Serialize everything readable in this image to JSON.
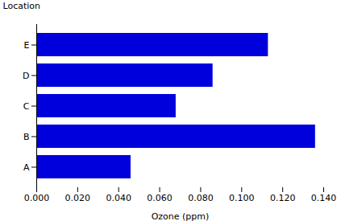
{
  "chart_data": {
    "type": "bar",
    "orientation": "horizontal",
    "categories": [
      "A",
      "B",
      "C",
      "D",
      "E"
    ],
    "values": [
      0.046,
      0.136,
      0.068,
      0.086,
      0.113
    ],
    "color": "#0000dd",
    "xlabel": "Ozone (ppm)",
    "ylabel": "Location",
    "xlim": [
      0.0,
      0.14
    ],
    "xticks": [
      {
        "value": 0.0,
        "label": "0.000"
      },
      {
        "value": 0.02,
        "label": "0.020"
      },
      {
        "value": 0.04,
        "label": "0.040"
      },
      {
        "value": 0.06,
        "label": "0.060"
      },
      {
        "value": 0.08,
        "label": "0.080"
      },
      {
        "value": 0.1,
        "label": "0.100"
      },
      {
        "value": 0.12,
        "label": "0.120"
      },
      {
        "value": 0.14,
        "label": "0.140"
      }
    ],
    "grid": false
  }
}
